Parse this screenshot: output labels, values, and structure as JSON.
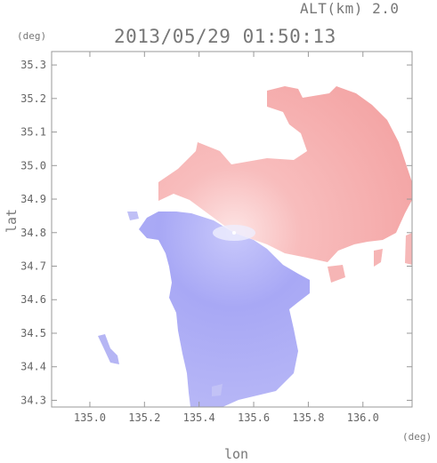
{
  "header": {
    "altitude": "ALT(km) 2.0",
    "datetime": "2013/05/29 01:50:13"
  },
  "axes": {
    "y_unit": "(deg)",
    "x_unit": "(deg)",
    "xlabel": "lon",
    "ylabel": "lat",
    "x_ticks": [
      "135.0",
      "135.2",
      "135.4",
      "135.6",
      "135.8",
      "136.0"
    ],
    "y_ticks": [
      "34.3",
      "34.4",
      "34.5",
      "34.6",
      "34.7",
      "34.8",
      "34.9",
      "35.0",
      "35.1",
      "35.2",
      "35.3"
    ],
    "xlim": [
      134.86,
      136.18
    ],
    "ylim": [
      34.28,
      35.34
    ]
  },
  "radar": {
    "center_lon": 135.52,
    "center_lat": 34.82,
    "approaching_color": "#8a8af0",
    "receding_color": "#f4a0a0"
  }
}
